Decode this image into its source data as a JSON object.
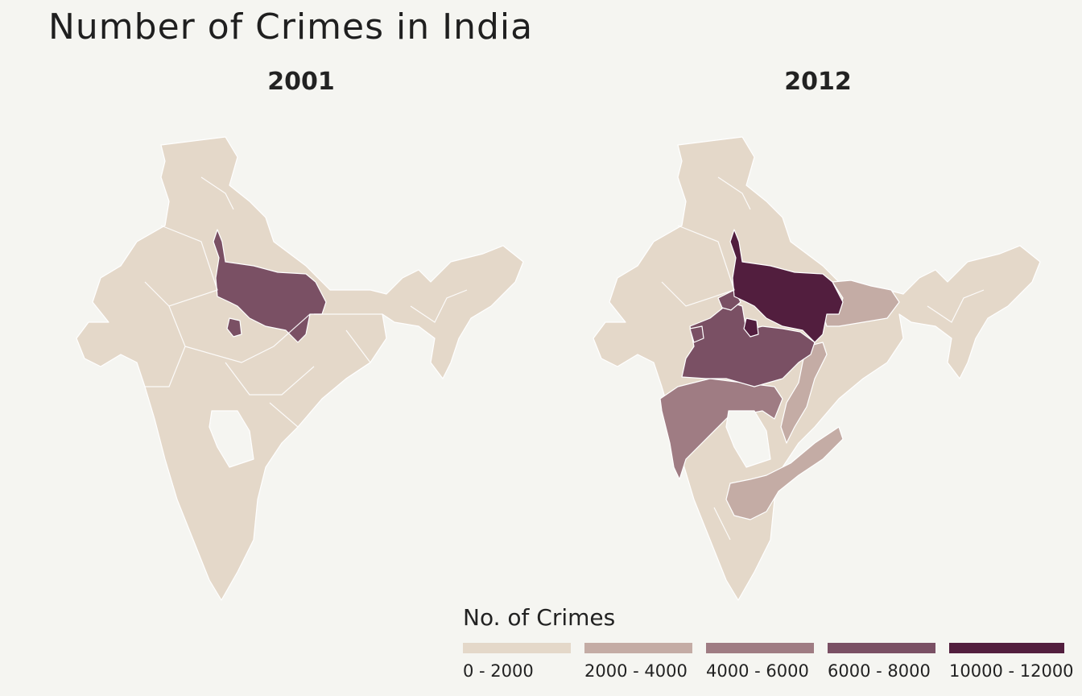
{
  "title": "Number of Crimes in India",
  "panels": [
    {
      "label": "2001"
    },
    {
      "label": "2012"
    }
  ],
  "legend": {
    "title": "No. of Crimes",
    "bins": [
      {
        "label": "0 - 2000",
        "color": "#e4d8c9"
      },
      {
        "label": "2000 - 4000",
        "color": "#c4aca5"
      },
      {
        "label": "4000 - 6000",
        "color": "#9f7c83"
      },
      {
        "label": "6000 - 8000",
        "color": "#7a5064"
      },
      {
        "label": "10000 - 12000",
        "color": "#521e3e"
      }
    ]
  }
}
